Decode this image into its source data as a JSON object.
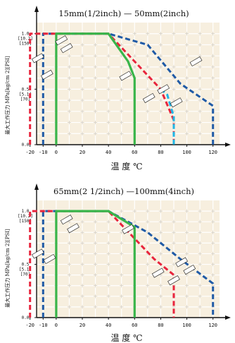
{
  "colors": {
    "plot_bg": "#f7efdf",
    "grid": "#ffffff",
    "axis": "#111111",
    "series": [
      "#1f5aa6",
      "#e8243c",
      "#39b54a",
      "#1fb5e6"
    ]
  },
  "chart_data": [
    {
      "type": "line",
      "title": "15mm(1/2inch) — 50mm(2inch)",
      "xlabel": "温 度 ℃",
      "ylabel": "最大工作压力 MPa[kg/cm 2][PSI]",
      "x_ticks": [
        "-10",
        "-20",
        "0",
        "20",
        "40",
        "60",
        "80",
        "100",
        "120"
      ],
      "x_tick_values": [
        -10,
        -20,
        0,
        20,
        40,
        60,
        80,
        100,
        120
      ],
      "y_ticks": [
        {
          "value": 1.0,
          "lines": [
            "1.0",
            "[10.2]",
            "[150]"
          ]
        },
        {
          "value": 0.5,
          "lines": [
            "0.5",
            "[5.1]",
            "[70]"
          ]
        },
        {
          "value": 0.0,
          "lines": [
            "0.0"
          ]
        }
      ],
      "xlim": [
        -15,
        125
      ],
      "ylim": [
        0,
        1.1
      ],
      "grid": true,
      "series": [
        {
          "style": "dashed",
          "color": "#1f5aa6",
          "x": [
            -10,
            -10,
            40,
            70,
            95,
            120,
            120
          ],
          "y": [
            0,
            1.0,
            1.0,
            0.9,
            0.55,
            0.35,
            0
          ]
        },
        {
          "style": "dashed",
          "color": "#e8243c",
          "x": [
            -20,
            -20,
            40,
            80,
            90,
            90
          ],
          "y": [
            0,
            1.0,
            1.0,
            0.5,
            0.22,
            0
          ]
        },
        {
          "style": "solid",
          "color": "#39b54a",
          "x": [
            0,
            0,
            40,
            55,
            60,
            60
          ],
          "y": [
            0,
            1.0,
            1.0,
            0.75,
            0.6,
            0
          ]
        },
        {
          "style": "dashed",
          "color": "#1fb5e6",
          "x": [
            80,
            85,
            90,
            90
          ],
          "y": [
            0.5,
            0.45,
            0.25,
            0
          ]
        }
      ]
    },
    {
      "type": "line",
      "title": "65mm(2 1/2inch) —100mm(4inch)",
      "xlabel": "温 度 ℃",
      "ylabel": "最大工作压力 MPa[kg/cm 2][PSI]",
      "x_ticks": [
        "-10",
        "-20",
        "0",
        "20",
        "40",
        "60",
        "80",
        "100",
        "120"
      ],
      "x_tick_values": [
        -10,
        -20,
        0,
        20,
        40,
        60,
        80,
        100,
        120
      ],
      "y_ticks": [
        {
          "value": 1.0,
          "lines": [
            "1.0",
            "[10.2]",
            "[150]"
          ]
        },
        {
          "value": 0.5,
          "lines": [
            "0.5",
            "[5.1]",
            "[70]"
          ]
        },
        {
          "value": 0.0,
          "lines": [
            "0.0"
          ]
        }
      ],
      "xlim": [
        -15,
        125
      ],
      "ylim": [
        0,
        1.1
      ],
      "grid": true,
      "series": [
        {
          "style": "dashed",
          "color": "#1f5aa6",
          "x": [
            -10,
            -10,
            40,
            70,
            95,
            120,
            120
          ],
          "y": [
            0,
            1.0,
            1.0,
            0.8,
            0.55,
            0.32,
            0
          ]
        },
        {
          "style": "dashed",
          "color": "#e8243c",
          "x": [
            -20,
            -20,
            40,
            75,
            90,
            90
          ],
          "y": [
            0,
            1.0,
            1.0,
            0.55,
            0.4,
            0
          ]
        },
        {
          "style": "solid",
          "color": "#39b54a",
          "x": [
            0,
            0,
            40,
            60,
            60
          ],
          "y": [
            0,
            1.0,
            1.0,
            0.85,
            0
          ]
        }
      ]
    }
  ]
}
